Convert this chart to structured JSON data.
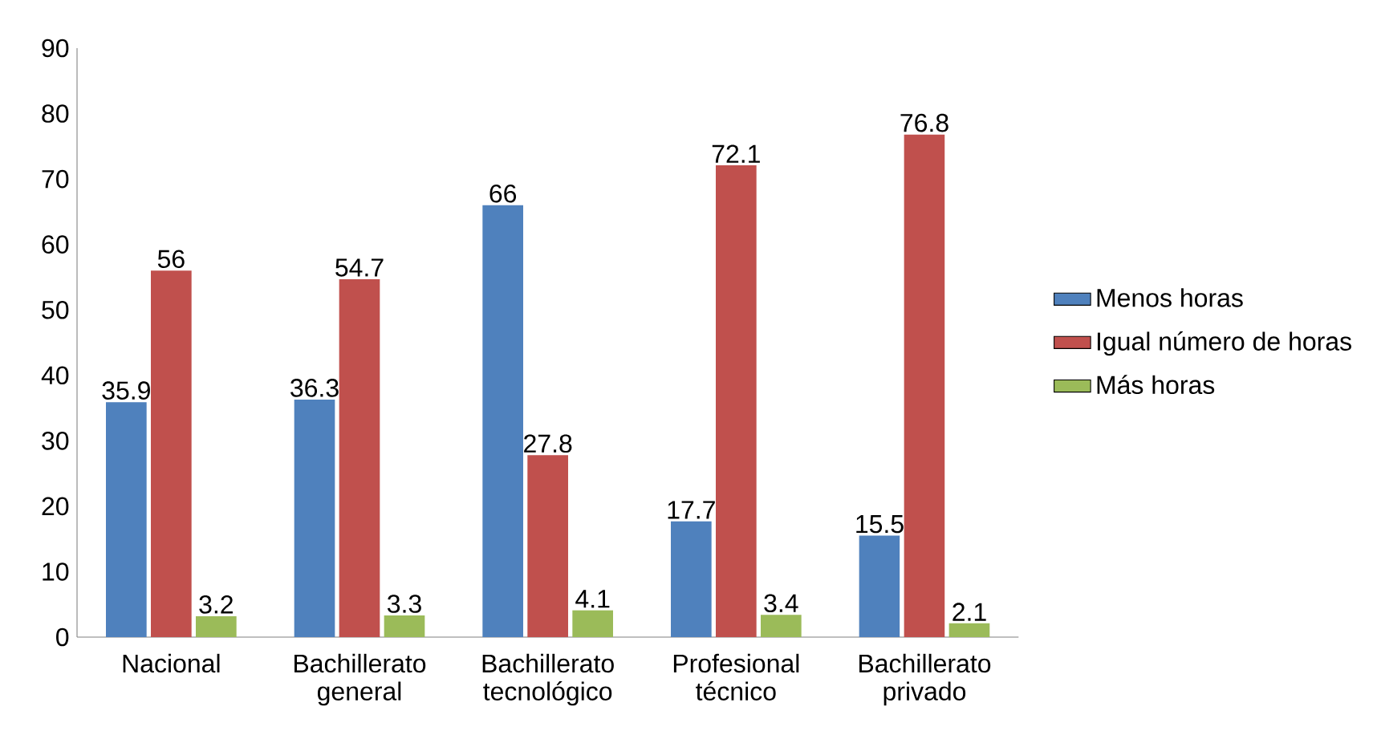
{
  "chart_data": {
    "type": "bar",
    "categories": [
      "Nacional",
      "Bachillerato general",
      "Bachillerato tecnológico",
      "Profesional técnico",
      "Bachillerato privado"
    ],
    "series": [
      {
        "name": "Menos horas",
        "color": "#4f81bd",
        "values": [
          35.9,
          36.3,
          66,
          17.7,
          15.5
        ]
      },
      {
        "name": "Igual número de horas",
        "color": "#c0504d",
        "values": [
          56,
          54.7,
          27.8,
          72.1,
          76.8
        ]
      },
      {
        "name": "Más horas",
        "color": "#9bbb59",
        "values": [
          3.2,
          3.3,
          4.1,
          3.4,
          2.1
        ]
      }
    ],
    "ylim": [
      0,
      90
    ],
    "yticks": [
      0,
      10,
      20,
      30,
      40,
      50,
      60,
      70,
      80,
      90
    ],
    "data_labels": true,
    "legend": "right",
    "grid": false
  }
}
